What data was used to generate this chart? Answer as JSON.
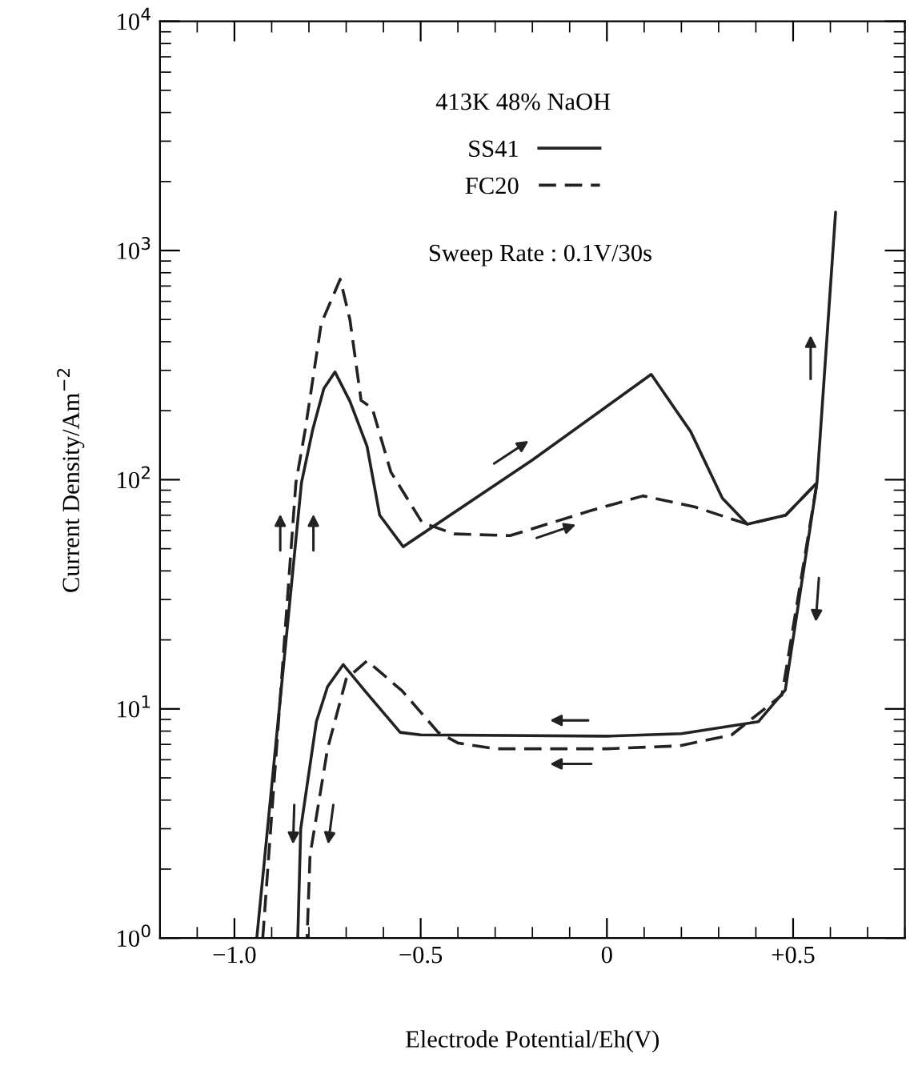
{
  "chart_data": {
    "type": "line",
    "xlabel": "Electrode Potential/Eh(V)",
    "ylabel": "Current Density/Am$^{−2}$",
    "annotations": [
      "413K 48% NaOH",
      "Sweep Rate : 0.1V/30s"
    ],
    "log": "y",
    "xlim": [
      -1.2,
      0.8
    ],
    "ylim": [
      1,
      10000
    ],
    "xticks": [
      {
        "value": -1.0,
        "label": "−1.0"
      },
      {
        "value": -0.5,
        "label": "−0.5"
      },
      {
        "value": 0,
        "label": "0"
      },
      {
        "value": 0.5,
        "label": "+0.5"
      }
    ],
    "yticks": [
      {
        "value": 1,
        "label": "10$^{0}$"
      },
      {
        "value": 10,
        "label": "10$^{1}$"
      },
      {
        "value": 100,
        "label": "10$^{2}$"
      },
      {
        "value": 1000,
        "label": "10$^{3}$"
      },
      {
        "value": 10000,
        "label": "10$^{4}$"
      }
    ],
    "grid": false,
    "legend": "top",
    "marker": "none",
    "series": [
      {
        "name": "SS41",
        "color": "#222222",
        "line_style": "solid",
        "x": [
          -0.94,
          -0.82,
          -0.79,
          -0.76,
          -0.73,
          -0.69,
          -0.644,
          -0.61,
          -0.547,
          -0.2,
          0.119,
          0.225,
          0.31,
          0.377,
          0.48,
          0.564,
          0.614,
          0.564,
          0.479,
          0.407,
          0.2,
          0.0,
          -0.5,
          -0.555,
          -0.65,
          -0.708,
          -0.75,
          -0.78,
          -0.822,
          -0.83
        ],
        "values": [
          1,
          97,
          165,
          250,
          295,
          220,
          140,
          70,
          51,
          122,
          288,
          162,
          83,
          64,
          70,
          97,
          1470,
          97,
          12.1,
          8.8,
          7.8,
          7.6,
          7.7,
          7.9,
          12,
          15.6,
          12.5,
          8.8,
          3.0,
          1
        ]
      },
      {
        "name": "FC20",
        "color": "#222222",
        "line_style": "dashed",
        "x": [
          -0.924,
          -0.835,
          -0.81,
          -0.767,
          -0.716,
          -0.69,
          -0.66,
          -0.63,
          -0.58,
          -0.496,
          -0.41,
          -0.26,
          -0.047,
          0.097,
          0.237,
          0.377,
          0.48,
          0.564,
          0.47,
          0.335,
          0.195,
          0.0,
          -0.3,
          -0.4,
          -0.453,
          -0.55,
          -0.644,
          -0.7,
          -0.75,
          -0.797,
          -0.805
        ],
        "values": [
          1,
          97,
          165,
          480,
          750,
          500,
          222,
          205,
          108,
          65,
          58,
          57,
          73,
          85,
          76,
          64,
          70,
          97,
          11.5,
          7.7,
          6.9,
          6.7,
          6.7,
          7.1,
          7.9,
          12,
          16.2,
          13.5,
          6.7,
          2.3,
          1
        ]
      }
    ]
  }
}
